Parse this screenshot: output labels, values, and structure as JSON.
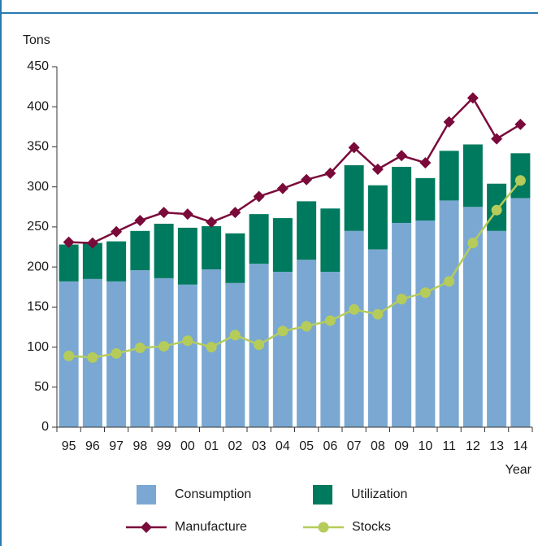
{
  "chart_data": {
    "type": "bar_line",
    "y_label": "Tons",
    "x_label": "Year",
    "categories": [
      "95",
      "96",
      "97",
      "98",
      "99",
      "00",
      "01",
      "02",
      "03",
      "04",
      "05",
      "06",
      "07",
      "08",
      "09",
      "10",
      "11",
      "12",
      "13",
      "14"
    ],
    "series": [
      {
        "name": "Consumption",
        "kind": "bar",
        "color": "#7aa8d2",
        "values": [
          182,
          185,
          182,
          196,
          186,
          178,
          197,
          180,
          204,
          194,
          209,
          194,
          245,
          222,
          255,
          258,
          283,
          275,
          245,
          286
        ]
      },
      {
        "name": "Utilization",
        "kind": "bar",
        "color": "#007a5e",
        "values": [
          46,
          45,
          50,
          49,
          68,
          71,
          54,
          62,
          62,
          67,
          73,
          79,
          82,
          80,
          70,
          53,
          62,
          78,
          59,
          56
        ]
      },
      {
        "name": "Manufacture",
        "kind": "line",
        "marker": "diamond",
        "color": "#7a0a3a",
        "values": [
          231,
          230,
          244,
          258,
          268,
          266,
          256,
          268,
          288,
          298,
          309,
          317,
          349,
          322,
          339,
          330,
          381,
          411,
          360,
          378
        ]
      },
      {
        "name": "Stocks",
        "kind": "line",
        "marker": "circle",
        "color": "#b5cc5a",
        "values": [
          89,
          87,
          92,
          99,
          101,
          108,
          100,
          115,
          103,
          120,
          126,
          133,
          147,
          141,
          160,
          168,
          182,
          230,
          271,
          308
        ]
      }
    ],
    "ylim": [
      0,
      450
    ],
    "yticks": [
      0,
      50,
      100,
      150,
      200,
      250,
      300,
      350,
      400,
      450
    ]
  }
}
